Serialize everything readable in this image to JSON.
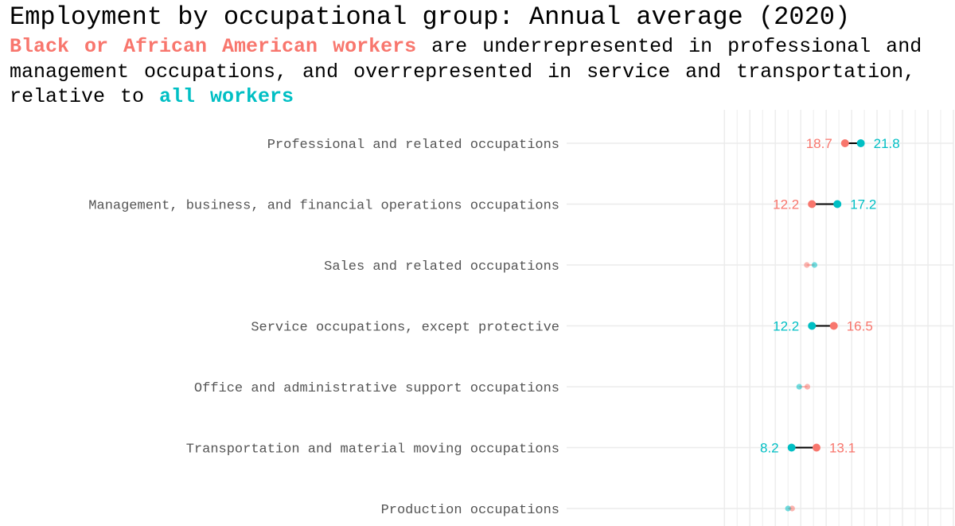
{
  "colors": {
    "black_group": "#F8766D",
    "all_workers": "#00BFC4",
    "connector": "#000000",
    "grid": "#EBEBEB"
  },
  "title": "Employment by occupational group: Annual average (2020)",
  "subtitle": {
    "hl1": "Black or African American workers",
    "t1": " are underrepresented in professional and management occupations, and overrepresented in service and transportation, relative to ",
    "hl2": "all workers"
  },
  "chart_data": {
    "type": "dumbbell",
    "title": "Employment by occupational group: Annual average (2020)",
    "categories": [
      "Professional and related occupations",
      "Management, business, and financial operations occupations",
      "Sales and related occupations",
      "Service occupations, except protective",
      "Office and administrative support occupations",
      "Transportation and material moving occupations",
      "Production occupations"
    ],
    "series": [
      {
        "name": "Black or African American workers",
        "color": "#F8766D",
        "values": [
          18.7,
          12.2,
          11.2,
          16.5,
          11.3,
          13.1,
          8.3
        ]
      },
      {
        "name": "all workers",
        "color": "#00BFC4",
        "values": [
          21.8,
          17.2,
          12.7,
          12.2,
          9.7,
          8.2,
          7.5
        ]
      }
    ],
    "labeled": [
      true,
      true,
      false,
      true,
      false,
      true,
      false
    ],
    "xlim": [
      -36,
      40
    ],
    "grid": true
  }
}
